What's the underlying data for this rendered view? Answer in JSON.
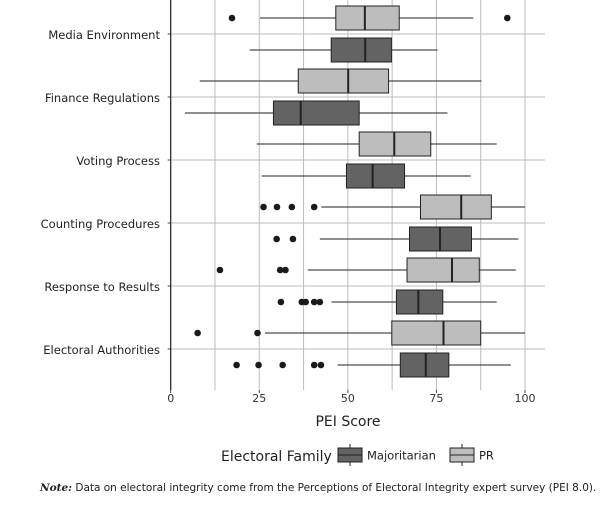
{
  "chart_data": {
    "type": "boxplot",
    "title": "",
    "xlabel": "PEI Score",
    "ylabel": "",
    "xlim": [
      0,
      100
    ],
    "x_ticks": [
      "0",
      "25",
      "50",
      "75",
      "100"
    ],
    "grid": true,
    "legend": {
      "title": "Electoral Family",
      "position": "bottom",
      "entries": [
        "Majoritarian",
        "PR"
      ]
    },
    "series_colors": {
      "Majoritarian": "#636363",
      "PR": "#bdbdbd"
    },
    "categories": [
      "Media Environment",
      "Finance Regulations",
      "Voting Process",
      "Counting Procedures",
      "Response to Results",
      "Electoral Authorities"
    ],
    "series": [
      {
        "name": "PR",
        "boxes": [
          {
            "min": 25.2,
            "q1": 46.6,
            "median": 54.8,
            "q3": 64.5,
            "max": 85.4,
            "outliers": [
              17.3,
              95.0
            ]
          },
          {
            "min": 8.2,
            "q1": 36.0,
            "median": 50.1,
            "q3": 61.5,
            "max": 87.7,
            "outliers": []
          },
          {
            "min": 24.3,
            "q1": 53.2,
            "median": 63.1,
            "q3": 73.4,
            "max": 92.0,
            "outliers": []
          },
          {
            "min": 42.5,
            "q1": 70.5,
            "median": 82.0,
            "q3": 90.5,
            "max": 100,
            "outliers": [
              26.2,
              30.0,
              34.2,
              40.5
            ]
          },
          {
            "min": 38.7,
            "q1": 66.7,
            "median": 79.4,
            "q3": 87.1,
            "max": 97.4,
            "outliers": [
              13.9,
              30.9,
              32.4
            ]
          },
          {
            "min": 26.6,
            "q1": 62.4,
            "median": 77.0,
            "q3": 87.5,
            "max": 100,
            "outliers": [
              7.6,
              24.5
            ]
          }
        ]
      },
      {
        "name": "Majoritarian",
        "boxes": [
          {
            "min": 22.3,
            "q1": 45.3,
            "median": 54.9,
            "q3": 62.3,
            "max": 75.3,
            "outliers": []
          },
          {
            "min": 4.0,
            "q1": 29.0,
            "median": 36.7,
            "q3": 53.2,
            "max": 78.1,
            "outliers": []
          },
          {
            "min": 25.7,
            "q1": 49.6,
            "median": 57.0,
            "q3": 66.0,
            "max": 84.7,
            "outliers": []
          },
          {
            "min": 42.1,
            "q1": 67.4,
            "median": 76.0,
            "q3": 84.9,
            "max": 98.1,
            "outliers": [
              29.9,
              34.5
            ]
          },
          {
            "min": 45.4,
            "q1": 63.7,
            "median": 69.9,
            "q3": 76.8,
            "max": 92.0,
            "outliers": [
              31.1,
              37.0,
              38.1,
              40.5,
              42.1
            ]
          },
          {
            "min": 47.1,
            "q1": 64.8,
            "median": 72.0,
            "q3": 78.5,
            "max": 96.0,
            "outliers": [
              18.6,
              24.8,
              31.6,
              40.5,
              42.4
            ]
          }
        ]
      }
    ]
  },
  "note": {
    "label": "Note:",
    "text": " Data on electoral integrity come from the Perceptions of Electoral Integrity expert survey (PEI 8.0)."
  }
}
